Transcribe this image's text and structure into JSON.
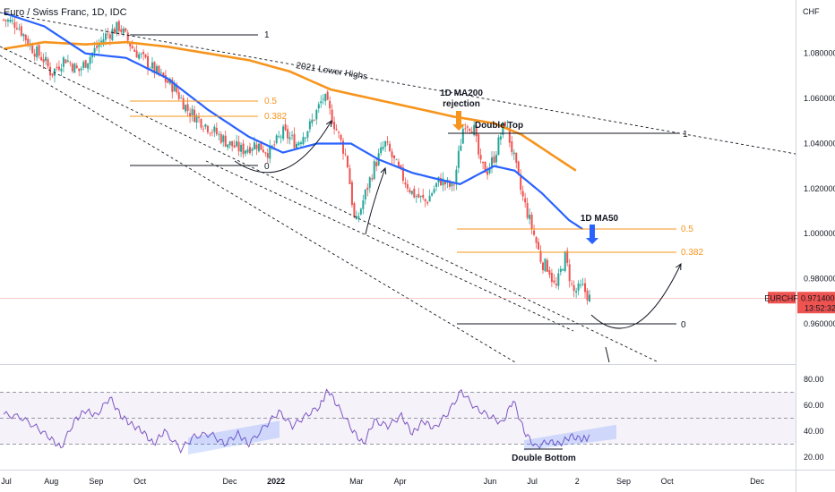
{
  "chart_data": {
    "type": "candlestick",
    "title": "Euro / Swiss Franc, 1D, IDC",
    "currency": "CHF",
    "symbol_tag": "EURCHF",
    "last_price": "0.971400",
    "countdown": "13:52:32",
    "y_ticks": [
      "1.080000",
      "1.060000",
      "1.040000",
      "1.020000",
      "1.000000",
      "0.980000",
      "0.960000"
    ],
    "ylim": [
      0.946,
      1.102
    ],
    "rsi_ticks": [
      "80.00",
      "60.00",
      "40.00",
      "20.00"
    ],
    "rsi_ylim": [
      16,
      88
    ],
    "x_ticks": [
      {
        "label": "Jul",
        "t": 0.02
      },
      {
        "label": "Aug",
        "t": 0.35
      },
      {
        "label": "Sep",
        "t": 0.68
      },
      {
        "label": "Oct",
        "t": 1.0
      },
      {
        "label": "Dec",
        "t": 1.66
      },
      {
        "label": "2022",
        "t": 2.0
      },
      {
        "label": "Mar",
        "t": 2.59
      },
      {
        "label": "Apr",
        "t": 2.91
      },
      {
        "label": "Jun",
        "t": 3.57
      },
      {
        "label": "Jul",
        "t": 3.88
      },
      {
        "label": "2",
        "t": 4.21
      },
      {
        "label": "Sep",
        "t": 4.55
      },
      {
        "label": "Oct",
        "t": 4.87
      },
      {
        "label": "Dec",
        "t": 5.53
      }
    ],
    "price_path": [
      [
        0.0,
        1.095
      ],
      [
        0.1,
        1.093
      ],
      [
        0.2,
        1.083
      ],
      [
        0.3,
        1.077
      ],
      [
        0.35,
        1.071
      ],
      [
        0.45,
        1.078
      ],
      [
        0.55,
        1.072
      ],
      [
        0.65,
        1.08
      ],
      [
        0.75,
        1.088
      ],
      [
        0.85,
        1.092
      ],
      [
        0.95,
        1.082
      ],
      [
        1.05,
        1.076
      ],
      [
        1.15,
        1.07
      ],
      [
        1.25,
        1.065
      ],
      [
        1.35,
        1.055
      ],
      [
        1.45,
        1.05
      ],
      [
        1.55,
        1.045
      ],
      [
        1.65,
        1.04
      ],
      [
        1.75,
        1.037
      ],
      [
        1.85,
        1.04
      ],
      [
        1.95,
        1.036
      ],
      [
        2.05,
        1.045
      ],
      [
        2.15,
        1.04
      ],
      [
        2.25,
        1.048
      ],
      [
        2.35,
        1.061
      ],
      [
        2.45,
        1.045
      ],
      [
        2.52,
        1.033
      ],
      [
        2.58,
        1.003
      ],
      [
        2.64,
        1.015
      ],
      [
        2.72,
        1.03
      ],
      [
        2.8,
        1.04
      ],
      [
        2.9,
        1.028
      ],
      [
        3.0,
        1.018
      ],
      [
        3.1,
        1.014
      ],
      [
        3.2,
        1.024
      ],
      [
        3.3,
        1.02
      ],
      [
        3.38,
        1.05
      ],
      [
        3.45,
        1.047
      ],
      [
        3.5,
        1.03
      ],
      [
        3.55,
        1.028
      ],
      [
        3.6,
        1.034
      ],
      [
        3.68,
        1.05
      ],
      [
        3.74,
        1.035
      ],
      [
        3.8,
        1.018
      ],
      [
        3.85,
        1.008
      ],
      [
        3.9,
        0.998
      ],
      [
        3.95,
        0.987
      ],
      [
        4.0,
        0.985
      ],
      [
        4.05,
        0.975
      ],
      [
        4.12,
        0.99
      ],
      [
        4.18,
        0.974
      ],
      [
        4.25,
        0.976
      ],
      [
        4.3,
        0.9714
      ]
    ],
    "ma200": [
      [
        0.0,
        1.082
      ],
      [
        0.3,
        1.085
      ],
      [
        0.6,
        1.084
      ],
      [
        0.9,
        1.085
      ],
      [
        1.2,
        1.083
      ],
      [
        1.5,
        1.08
      ],
      [
        1.8,
        1.077
      ],
      [
        2.1,
        1.072
      ],
      [
        2.4,
        1.064
      ],
      [
        2.7,
        1.06
      ],
      [
        3.0,
        1.056
      ],
      [
        3.3,
        1.052
      ],
      [
        3.6,
        1.049
      ],
      [
        3.8,
        1.044
      ],
      [
        4.0,
        1.036
      ],
      [
        4.2,
        1.028
      ]
    ],
    "ma50": [
      [
        0.0,
        1.098
      ],
      [
        0.3,
        1.092
      ],
      [
        0.6,
        1.08
      ],
      [
        0.9,
        1.078
      ],
      [
        1.2,
        1.069
      ],
      [
        1.5,
        1.055
      ],
      [
        1.8,
        1.043
      ],
      [
        2.05,
        1.036
      ],
      [
        2.3,
        1.04
      ],
      [
        2.55,
        1.04
      ],
      [
        2.75,
        1.033
      ],
      [
        3.0,
        1.027
      ],
      [
        3.2,
        1.024
      ],
      [
        3.35,
        1.022
      ],
      [
        3.6,
        1.03
      ],
      [
        3.75,
        1.028
      ],
      [
        3.95,
        1.018
      ],
      [
        4.15,
        1.006
      ],
      [
        4.25,
        1.002
      ]
    ],
    "rsi_path": [
      [
        0.0,
        53
      ],
      [
        0.12,
        51
      ],
      [
        0.24,
        43
      ],
      [
        0.34,
        35
      ],
      [
        0.42,
        27
      ],
      [
        0.52,
        48
      ],
      [
        0.6,
        56
      ],
      [
        0.68,
        52
      ],
      [
        0.78,
        66
      ],
      [
        0.86,
        52
      ],
      [
        0.94,
        45
      ],
      [
        1.02,
        40
      ],
      [
        1.1,
        30
      ],
      [
        1.18,
        40
      ],
      [
        1.3,
        26
      ],
      [
        1.4,
        36
      ],
      [
        1.52,
        38
      ],
      [
        1.62,
        30
      ],
      [
        1.72,
        38
      ],
      [
        1.8,
        30
      ],
      [
        1.92,
        44
      ],
      [
        2.02,
        55
      ],
      [
        2.12,
        44
      ],
      [
        2.22,
        52
      ],
      [
        2.32,
        59
      ],
      [
        2.38,
        72
      ],
      [
        2.46,
        58
      ],
      [
        2.56,
        41
      ],
      [
        2.64,
        30
      ],
      [
        2.72,
        48
      ],
      [
        2.82,
        44
      ],
      [
        2.92,
        52
      ],
      [
        3.0,
        38
      ],
      [
        3.08,
        48
      ],
      [
        3.16,
        42
      ],
      [
        3.26,
        54
      ],
      [
        3.36,
        71
      ],
      [
        3.46,
        58
      ],
      [
        3.56,
        52
      ],
      [
        3.66,
        46
      ],
      [
        3.74,
        64
      ],
      [
        3.82,
        40
      ],
      [
        3.9,
        28
      ],
      [
        4.0,
        32
      ],
      [
        4.08,
        30
      ],
      [
        4.16,
        36
      ],
      [
        4.24,
        34
      ],
      [
        4.3,
        35
      ]
    ],
    "annotations": {
      "lower_highs": "2021 Lower Highs",
      "ma200_rejection_line1": "1D MA200",
      "ma200_rejection_line2": "rejection",
      "double_top": "Double Top",
      "ma50": "1D MA50",
      "double_bottom": "Double Bottom",
      "fib_1": "1",
      "fib_05": "0.5",
      "fib_0382": "0.382",
      "fib_0": "0"
    },
    "colors": {
      "up": "#26a69a",
      "down": "#ef5350",
      "ma200": "#f7941d",
      "ma50": "#2962ff",
      "rsi": "#7e57c2",
      "fib": "#f7941d",
      "arrow_orange": "#f7941d",
      "arrow_blue": "#2962ff",
      "tag": "#ef5350"
    }
  }
}
